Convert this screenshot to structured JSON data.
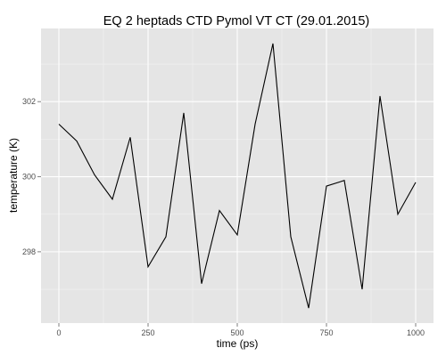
{
  "chart_data": {
    "type": "line",
    "title": "EQ 2 heptads CTD Pymol VT CT (29.01.2015)",
    "xlabel": "time (ps)",
    "ylabel": "temperature (K)",
    "xlim": [
      -50,
      1050
    ],
    "ylim": [
      296.1,
      303.95
    ],
    "x_ticks": [
      0,
      250,
      500,
      750,
      1000
    ],
    "y_ticks": [
      298,
      300,
      302
    ],
    "x_tick_labels": [
      "0",
      "250",
      "500",
      "750",
      "1000"
    ],
    "y_tick_labels": [
      "298",
      "300",
      "302"
    ],
    "grid": true,
    "legend": "none",
    "colors": {
      "panel": "#e5e5e5",
      "grid_major": "#ffffff",
      "grid_minor": "#f2f2f2",
      "line": "#000000",
      "tick": "#7f7f7f"
    },
    "series": [
      {
        "x": [
          0,
          50,
          100,
          150,
          200,
          250,
          300,
          350,
          400,
          450,
          500,
          550,
          600,
          650,
          700,
          750,
          800,
          850,
          900,
          950,
          1000
        ],
        "values": [
          301.4,
          300.95,
          300.05,
          299.4,
          301.05,
          297.6,
          298.4,
          301.7,
          297.15,
          299.1,
          298.45,
          301.4,
          303.55,
          298.4,
          296.5,
          299.75,
          299.9,
          297.0,
          302.15,
          299.0,
          299.85
        ]
      }
    ]
  }
}
